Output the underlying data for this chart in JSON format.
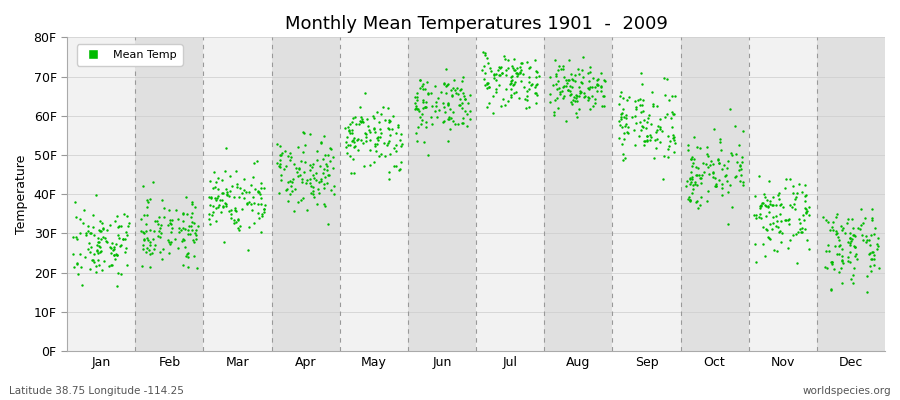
{
  "title": "Monthly Mean Temperatures 1901  -  2009",
  "ylabel": "Temperature",
  "xlabel_bottom_left": "Latitude 38.75 Longitude -114.25",
  "xlabel_bottom_right": "worldspecies.org",
  "legend_label": "Mean Temp",
  "dot_color": "#00bb00",
  "plot_bg_light": "#f2f2f2",
  "plot_bg_dark": "#e0e0e0",
  "ylim": [
    0,
    80
  ],
  "yticks": [
    0,
    10,
    20,
    30,
    40,
    50,
    60,
    70,
    80
  ],
  "ytick_labels": [
    "0F",
    "10F",
    "20F",
    "30F",
    "40F",
    "50F",
    "60F",
    "70F",
    "80F"
  ],
  "months": [
    "Jan",
    "Feb",
    "Mar",
    "Apr",
    "May",
    "Jun",
    "Jul",
    "Aug",
    "Sep",
    "Oct",
    "Nov",
    "Dec"
  ],
  "month_mean_temps_F": [
    27.5,
    31.0,
    38.5,
    46.0,
    54.0,
    63.0,
    69.5,
    67.0,
    58.0,
    46.0,
    34.0,
    26.5
  ],
  "month_std_temps_F": [
    4.5,
    4.2,
    4.5,
    4.5,
    4.5,
    4.0,
    3.5,
    3.5,
    4.5,
    4.5,
    4.5,
    4.5
  ],
  "n_years": 109,
  "seed": 7
}
